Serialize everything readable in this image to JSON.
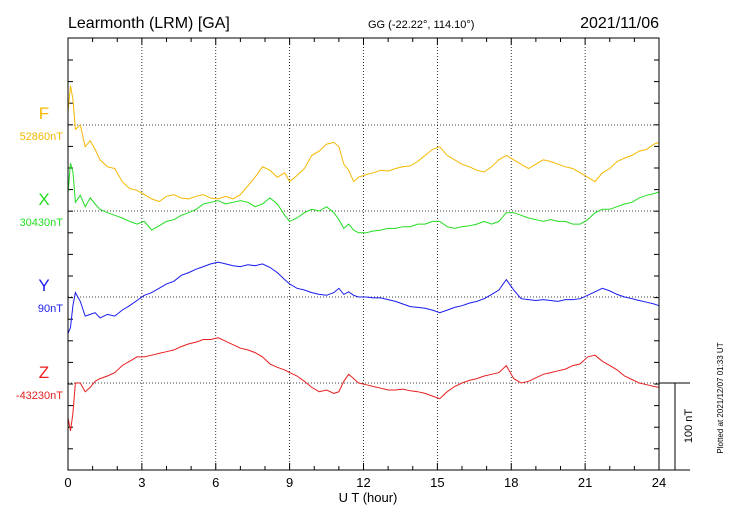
{
  "header": {
    "station": "Learmonth (LRM)  [GA]",
    "coords": "GG (-22.22°, 114.10°)",
    "date": "2021/11/06"
  },
  "footer": {
    "plotted": "Plotted at 2021/12/07 01:33 UT"
  },
  "chart_data": {
    "type": "line",
    "xlabel": "U T (hour)",
    "xlim": [
      0,
      24
    ],
    "xticks": [
      "0",
      "3",
      "6",
      "9",
      "12",
      "15",
      "18",
      "21",
      "24"
    ],
    "grid": true,
    "scale_bar": "100 nT",
    "series": [
      {
        "name": "F",
        "baseline": "52860nT",
        "color": "#f5b800",
        "x": [
          0,
          0.1,
          0.2,
          0.3,
          0.5,
          0.7,
          0.9,
          1.1,
          1.3,
          1.6,
          1.9,
          2.2,
          2.5,
          2.8,
          3.1,
          3.4,
          3.7,
          4.0,
          4.3,
          4.6,
          4.9,
          5.2,
          5.5,
          5.8,
          6.1,
          6.4,
          6.7,
          7.0,
          7.3,
          7.6,
          7.9,
          8.2,
          8.5,
          8.8,
          9.0,
          9.3,
          9.6,
          9.9,
          10.2,
          10.5,
          10.8,
          11.0,
          11.2,
          11.4,
          11.6,
          11.8,
          12.1,
          12.4,
          12.7,
          13.0,
          13.3,
          13.6,
          13.9,
          14.2,
          14.5,
          14.8,
          15.1,
          15.4,
          15.7,
          16.0,
          16.3,
          16.6,
          16.9,
          17.2,
          17.5,
          17.8,
          18.1,
          18.4,
          18.7,
          19.0,
          19.3,
          19.6,
          19.9,
          20.2,
          20.5,
          20.8,
          21.1,
          21.4,
          21.7,
          22.0,
          22.3,
          22.6,
          22.9,
          23.2,
          23.5,
          23.8,
          24.0
        ],
        "y": [
          52875,
          52905,
          52890,
          52855,
          52860,
          52835,
          52842,
          52832,
          52820,
          52812,
          52810,
          52795,
          52787,
          52785,
          52780,
          52775,
          52772,
          52778,
          52780,
          52776,
          52775,
          52778,
          52780,
          52776,
          52775,
          52778,
          52775,
          52780,
          52790,
          52800,
          52812,
          52808,
          52800,
          52805,
          52795,
          52802,
          52810,
          52825,
          52830,
          52838,
          52840,
          52835,
          52815,
          52808,
          52795,
          52800,
          52803,
          52805,
          52808,
          52807,
          52810,
          52812,
          52813,
          52818,
          52825,
          52832,
          52835,
          52825,
          52820,
          52815,
          52812,
          52808,
          52806,
          52812,
          52820,
          52825,
          52820,
          52815,
          52810,
          52815,
          52820,
          52818,
          52815,
          52812,
          52810,
          52805,
          52800,
          52795,
          52805,
          52810,
          52818,
          52822,
          52825,
          52830,
          52832,
          52838,
          52840
        ]
      },
      {
        "name": "X",
        "baseline": "30430nT",
        "color": "#22dd22",
        "x": [
          0,
          0.1,
          0.2,
          0.3,
          0.5,
          0.7,
          0.9,
          1.1,
          1.3,
          1.6,
          1.9,
          2.2,
          2.5,
          2.8,
          3.1,
          3.4,
          3.7,
          4.0,
          4.3,
          4.6,
          4.9,
          5.2,
          5.5,
          5.8,
          6.1,
          6.4,
          6.7,
          7.0,
          7.3,
          7.6,
          7.9,
          8.2,
          8.5,
          8.8,
          9.0,
          9.3,
          9.6,
          9.9,
          10.2,
          10.5,
          10.8,
          11.0,
          11.2,
          11.4,
          11.6,
          11.8,
          12.1,
          12.4,
          12.7,
          13.0,
          13.3,
          13.6,
          13.9,
          14.2,
          14.5,
          14.8,
          15.1,
          15.4,
          15.7,
          16.0,
          16.3,
          16.6,
          16.9,
          17.2,
          17.5,
          17.8,
          18.1,
          18.4,
          18.7,
          19.0,
          19.3,
          19.6,
          19.9,
          20.2,
          20.5,
          20.8,
          21.1,
          21.4,
          21.7,
          22.0,
          22.3,
          22.6,
          22.9,
          23.2,
          23.5,
          23.8,
          24.0
        ],
        "y": [
          30450,
          30485,
          30475,
          30440,
          30448,
          30435,
          30445,
          30438,
          30432,
          30428,
          30425,
          30422,
          30418,
          30415,
          30418,
          30408,
          30413,
          30418,
          30420,
          30425,
          30428,
          30432,
          30438,
          30440,
          30442,
          30438,
          30440,
          30442,
          30440,
          30435,
          30438,
          30445,
          30438,
          30425,
          30418,
          30422,
          30428,
          30432,
          30430,
          30435,
          30428,
          30420,
          30410,
          30415,
          30408,
          30405,
          30405,
          30407,
          30408,
          30410,
          30410,
          30412,
          30412,
          30415,
          30415,
          30418,
          30418,
          30412,
          30410,
          30412,
          30413,
          30415,
          30418,
          30415,
          30418,
          30428,
          30428,
          30425,
          30422,
          30420,
          30418,
          30420,
          30418,
          30418,
          30415,
          30415,
          30420,
          30428,
          30432,
          30432,
          30435,
          30438,
          30440,
          30445,
          30448,
          30450,
          30452
        ]
      },
      {
        "name": "Y",
        "baseline": "90nT",
        "color": "#1a1aee",
        "x": [
          0,
          0.1,
          0.2,
          0.3,
          0.5,
          0.7,
          0.9,
          1.1,
          1.3,
          1.6,
          1.9,
          2.2,
          2.5,
          2.8,
          3.1,
          3.4,
          3.7,
          4.0,
          4.3,
          4.6,
          4.9,
          5.2,
          5.5,
          5.8,
          6.1,
          6.4,
          6.7,
          7.0,
          7.3,
          7.6,
          7.9,
          8.2,
          8.5,
          8.8,
          9.0,
          9.3,
          9.6,
          9.9,
          10.2,
          10.5,
          10.8,
          11.0,
          11.2,
          11.4,
          11.6,
          11.8,
          12.1,
          12.4,
          12.7,
          13.0,
          13.3,
          13.6,
          13.9,
          14.2,
          14.5,
          14.8,
          15.1,
          15.4,
          15.7,
          16.0,
          16.3,
          16.6,
          16.9,
          17.2,
          17.5,
          17.8,
          18.1,
          18.4,
          18.7,
          19.0,
          19.3,
          19.6,
          19.9,
          20.2,
          20.5,
          20.8,
          21.1,
          21.4,
          21.7,
          22.0,
          22.3,
          22.6,
          22.9,
          23.2,
          23.5,
          23.8,
          24.0
        ],
        "y": [
          48,
          55,
          80,
          95,
          85,
          68,
          70,
          72,
          66,
          70,
          68,
          75,
          80,
          86,
          92,
          95,
          100,
          105,
          108,
          115,
          118,
          122,
          125,
          128,
          130,
          128,
          126,
          125,
          127,
          126,
          128,
          124,
          118,
          110,
          105,
          100,
          98,
          95,
          93,
          92,
          95,
          100,
          93,
          96,
          92,
          90,
          90,
          89,
          89,
          87,
          85,
          82,
          79,
          78,
          77,
          75,
          72,
          75,
          78,
          80,
          83,
          85,
          88,
          93,
          98,
          110,
          98,
          88,
          87,
          86,
          87,
          86,
          85,
          87,
          87,
          88,
          92,
          96,
          100,
          97,
          93,
          90,
          88,
          86,
          84,
          82,
          80
        ]
      },
      {
        "name": "Z",
        "baseline": "-43230nT",
        "color": "#e81e1e",
        "x": [
          0,
          0.1,
          0.2,
          0.3,
          0.5,
          0.7,
          0.9,
          1.1,
          1.3,
          1.6,
          1.9,
          2.2,
          2.5,
          2.8,
          3.1,
          3.4,
          3.7,
          4.0,
          4.3,
          4.6,
          4.9,
          5.2,
          5.5,
          5.8,
          6.1,
          6.4,
          6.7,
          7.0,
          7.3,
          7.6,
          7.9,
          8.2,
          8.5,
          8.8,
          9.0,
          9.3,
          9.6,
          9.9,
          10.2,
          10.5,
          10.8,
          11.0,
          11.2,
          11.4,
          11.6,
          11.8,
          12.1,
          12.4,
          12.7,
          13.0,
          13.3,
          13.6,
          13.9,
          14.2,
          14.5,
          14.8,
          15.1,
          15.4,
          15.7,
          16.0,
          16.3,
          16.6,
          16.9,
          17.2,
          17.5,
          17.8,
          18.1,
          18.4,
          18.7,
          19.0,
          19.3,
          19.6,
          19.9,
          20.2,
          20.5,
          20.8,
          21.1,
          21.4,
          21.7,
          22.0,
          22.3,
          22.6,
          22.9,
          23.2,
          23.5,
          23.8,
          24.0
        ],
        "y": [
          -43270,
          -43285,
          -43265,
          -43230,
          -43230,
          -43240,
          -43235,
          -43228,
          -43225,
          -43222,
          -43218,
          -43210,
          -43205,
          -43200,
          -43200,
          -43198,
          -43196,
          -43194,
          -43192,
          -43188,
          -43185,
          -43183,
          -43180,
          -43180,
          -43178,
          -43182,
          -43186,
          -43190,
          -43192,
          -43195,
          -43200,
          -43208,
          -43212,
          -43215,
          -43218,
          -43222,
          -43228,
          -43235,
          -43240,
          -43238,
          -43242,
          -43240,
          -43228,
          -43220,
          -43225,
          -43230,
          -43232,
          -43234,
          -43236,
          -43238,
          -43238,
          -43237,
          -43239,
          -43240,
          -43242,
          -43245,
          -43248,
          -43240,
          -43234,
          -43230,
          -43227,
          -43225,
          -43222,
          -43220,
          -43218,
          -43210,
          -43225,
          -43230,
          -43228,
          -43224,
          -43220,
          -43218,
          -43216,
          -43214,
          -43210,
          -43208,
          -43200,
          -43198,
          -43205,
          -43210,
          -43215,
          -43222,
          -43226,
          -43230,
          -43232,
          -43234,
          -43235
        ]
      }
    ]
  }
}
